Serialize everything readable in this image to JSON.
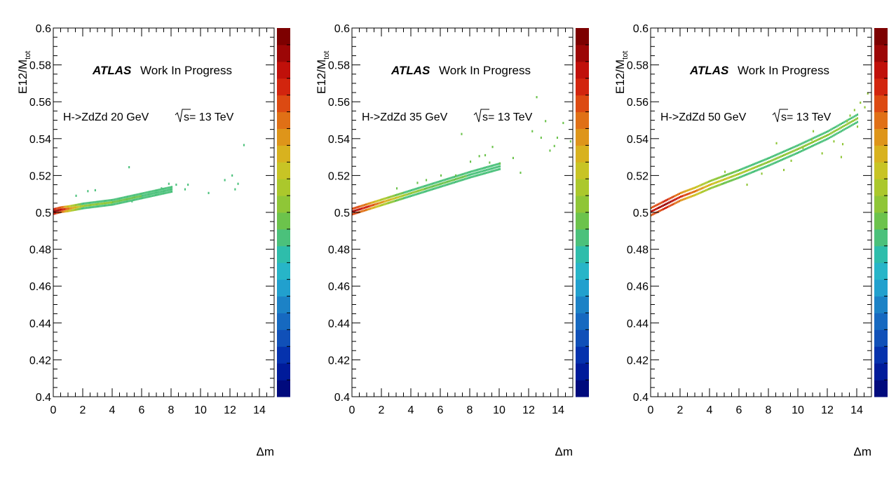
{
  "chart_data": [
    {
      "type": "heatmap",
      "atlas_label": "ATLAS",
      "status_label": "Work In Progress",
      "process_label": "H->ZdZd 20 GeV",
      "energy_label": "s= 13 TeV",
      "xlabel": "Δm",
      "ylabel_main": "E12/M",
      "ylabel_sub": "tot",
      "xlim": [
        0,
        15
      ],
      "ylim": [
        0.4,
        0.6
      ],
      "x_ticks": [
        "0",
        "2",
        "4",
        "6",
        "8",
        "10",
        "12",
        "14"
      ],
      "y_ticks": [
        "0.4",
        "0.42",
        "0.44",
        "0.46",
        "0.48",
        "0.5",
        "0.52",
        "0.54",
        "0.56",
        "0.58",
        "0.6"
      ],
      "band": [
        {
          "x": 0.0,
          "y": 0.5005,
          "level": 0.98
        },
        {
          "x": 0.5,
          "y": 0.5015,
          "level": 0.9
        },
        {
          "x": 1.0,
          "y": 0.502,
          "level": 0.75
        },
        {
          "x": 2.0,
          "y": 0.5035,
          "level": 0.55
        },
        {
          "x": 4.0,
          "y": 0.5055,
          "level": 0.5
        },
        {
          "x": 6.0,
          "y": 0.509,
          "level": 0.45
        },
        {
          "x": 8.0,
          "y": 0.5125,
          "level": 0.45
        }
      ],
      "band_spread": 0.0025,
      "scatter_points": [
        {
          "x": 1.5,
          "y": 0.509
        },
        {
          "x": 2.3,
          "y": 0.5115
        },
        {
          "x": 2.8,
          "y": 0.512
        },
        {
          "x": 5.1,
          "y": 0.5245
        },
        {
          "x": 5.3,
          "y": 0.506
        },
        {
          "x": 7.3,
          "y": 0.513
        },
        {
          "x": 7.8,
          "y": 0.5155
        },
        {
          "x": 8.3,
          "y": 0.515
        },
        {
          "x": 8.9,
          "y": 0.5125
        },
        {
          "x": 9.1,
          "y": 0.515
        },
        {
          "x": 10.5,
          "y": 0.5105
        },
        {
          "x": 11.6,
          "y": 0.5175
        },
        {
          "x": 12.1,
          "y": 0.52
        },
        {
          "x": 12.3,
          "y": 0.5125
        },
        {
          "x": 12.5,
          "y": 0.5155
        },
        {
          "x": 12.9,
          "y": 0.5365
        }
      ],
      "scatter_level": 0.45
    },
    {
      "type": "heatmap",
      "atlas_label": "ATLAS",
      "status_label": "Work In Progress",
      "process_label": "H->ZdZd 35 GeV",
      "energy_label": "s= 13 TeV",
      "xlabel": "Δm",
      "ylabel_main": "E12/M",
      "ylabel_sub": "tot",
      "xlim": [
        0,
        15
      ],
      "ylim": [
        0.4,
        0.6
      ],
      "x_ticks": [
        "0",
        "2",
        "4",
        "6",
        "8",
        "10",
        "12",
        "14"
      ],
      "y_ticks": [
        "0.4",
        "0.42",
        "0.44",
        "0.46",
        "0.48",
        "0.5",
        "0.52",
        "0.54",
        "0.56",
        "0.58",
        "0.6"
      ],
      "band": [
        {
          "x": 0.0,
          "y": 0.5005,
          "level": 0.95
        },
        {
          "x": 1.0,
          "y": 0.503,
          "level": 0.85
        },
        {
          "x": 2.0,
          "y": 0.5055,
          "level": 0.7
        },
        {
          "x": 4.0,
          "y": 0.5105,
          "level": 0.52
        },
        {
          "x": 6.0,
          "y": 0.5155,
          "level": 0.47
        },
        {
          "x": 8.0,
          "y": 0.5205,
          "level": 0.45
        },
        {
          "x": 10.0,
          "y": 0.525,
          "level": 0.44
        }
      ],
      "band_spread": 0.003,
      "scatter_points": [
        {
          "x": 3.0,
          "y": 0.513
        },
        {
          "x": 4.4,
          "y": 0.516
        },
        {
          "x": 5.0,
          "y": 0.5175
        },
        {
          "x": 7.0,
          "y": 0.52
        },
        {
          "x": 7.4,
          "y": 0.5425
        },
        {
          "x": 8.0,
          "y": 0.5275
        },
        {
          "x": 8.6,
          "y": 0.5305
        },
        {
          "x": 9.0,
          "y": 0.531
        },
        {
          "x": 9.3,
          "y": 0.527
        },
        {
          "x": 9.5,
          "y": 0.5355
        },
        {
          "x": 10.0,
          "y": 0.5265
        },
        {
          "x": 10.9,
          "y": 0.5295
        },
        {
          "x": 11.4,
          "y": 0.5215
        },
        {
          "x": 12.5,
          "y": 0.5625
        },
        {
          "x": 12.8,
          "y": 0.5405
        },
        {
          "x": 13.1,
          "y": 0.5495
        },
        {
          "x": 13.4,
          "y": 0.5335
        },
        {
          "x": 13.9,
          "y": 0.5405
        },
        {
          "x": 14.3,
          "y": 0.5485
        },
        {
          "x": 14.8,
          "y": 0.5385
        },
        {
          "x": 13.7,
          "y": 0.536
        },
        {
          "x": 6.0,
          "y": 0.52
        },
        {
          "x": 12.2,
          "y": 0.544
        }
      ],
      "scatter_level": 0.48
    },
    {
      "type": "heatmap",
      "atlas_label": "ATLAS",
      "status_label": "Work In Progress",
      "process_label": "H->ZdZd 50 GeV",
      "energy_label": "s= 13 TeV",
      "xlabel": "Δm",
      "ylabel_main": "E12/M",
      "ylabel_sub": "tot",
      "xlim": [
        0,
        15
      ],
      "ylim": [
        0.4,
        0.6
      ],
      "x_ticks": [
        "0",
        "2",
        "4",
        "6",
        "8",
        "10",
        "12",
        "14"
      ],
      "y_ticks": [
        "0.4",
        "0.42",
        "0.44",
        "0.46",
        "0.48",
        "0.5",
        "0.52",
        "0.54",
        "0.56",
        "0.58",
        "0.6"
      ],
      "band": [
        {
          "x": 0.0,
          "y": 0.5005,
          "level": 0.9
        },
        {
          "x": 1.0,
          "y": 0.5045,
          "level": 0.97
        },
        {
          "x": 2.0,
          "y": 0.5085,
          "level": 0.85
        },
        {
          "x": 3.0,
          "y": 0.5115,
          "level": 0.75
        },
        {
          "x": 4.0,
          "y": 0.515,
          "level": 0.65
        },
        {
          "x": 6.0,
          "y": 0.521,
          "level": 0.57
        },
        {
          "x": 8.0,
          "y": 0.5275,
          "level": 0.53
        },
        {
          "x": 10.0,
          "y": 0.5345,
          "level": 0.52
        },
        {
          "x": 12.0,
          "y": 0.542,
          "level": 0.5
        },
        {
          "x": 14.0,
          "y": 0.551,
          "level": 0.5
        }
      ],
      "band_spread": 0.004,
      "scatter_points": [
        {
          "x": 5.0,
          "y": 0.522
        },
        {
          "x": 6.5,
          "y": 0.515
        },
        {
          "x": 7.5,
          "y": 0.521
        },
        {
          "x": 8.5,
          "y": 0.5375
        },
        {
          "x": 9.5,
          "y": 0.528
        },
        {
          "x": 10.3,
          "y": 0.535
        },
        {
          "x": 11.0,
          "y": 0.544
        },
        {
          "x": 11.6,
          "y": 0.532
        },
        {
          "x": 12.4,
          "y": 0.5385
        },
        {
          "x": 13.0,
          "y": 0.537
        },
        {
          "x": 13.3,
          "y": 0.5495
        },
        {
          "x": 13.8,
          "y": 0.5555
        },
        {
          "x": 14.2,
          "y": 0.5595
        },
        {
          "x": 14.5,
          "y": 0.557
        },
        {
          "x": 14.7,
          "y": 0.5645
        },
        {
          "x": 12.9,
          "y": 0.53
        },
        {
          "x": 10.9,
          "y": 0.5395
        },
        {
          "x": 9.0,
          "y": 0.523
        },
        {
          "x": 13.5,
          "y": 0.5525
        },
        {
          "x": 14.0,
          "y": 0.5465
        }
      ],
      "scatter_level": 0.5
    }
  ],
  "palette": [
    "#000a7d",
    "#001b9a",
    "#0532ad",
    "#1050b8",
    "#1669c0",
    "#1c82c6",
    "#21a0ce",
    "#27b5c8",
    "#2ebdab",
    "#4bc17b",
    "#6cc34c",
    "#8fc637",
    "#abc82c",
    "#c8c425",
    "#d8b21f",
    "#de951a",
    "#e07016",
    "#dc4a12",
    "#d2250e",
    "#c0100a",
    "#9c0606",
    "#7d0000"
  ]
}
